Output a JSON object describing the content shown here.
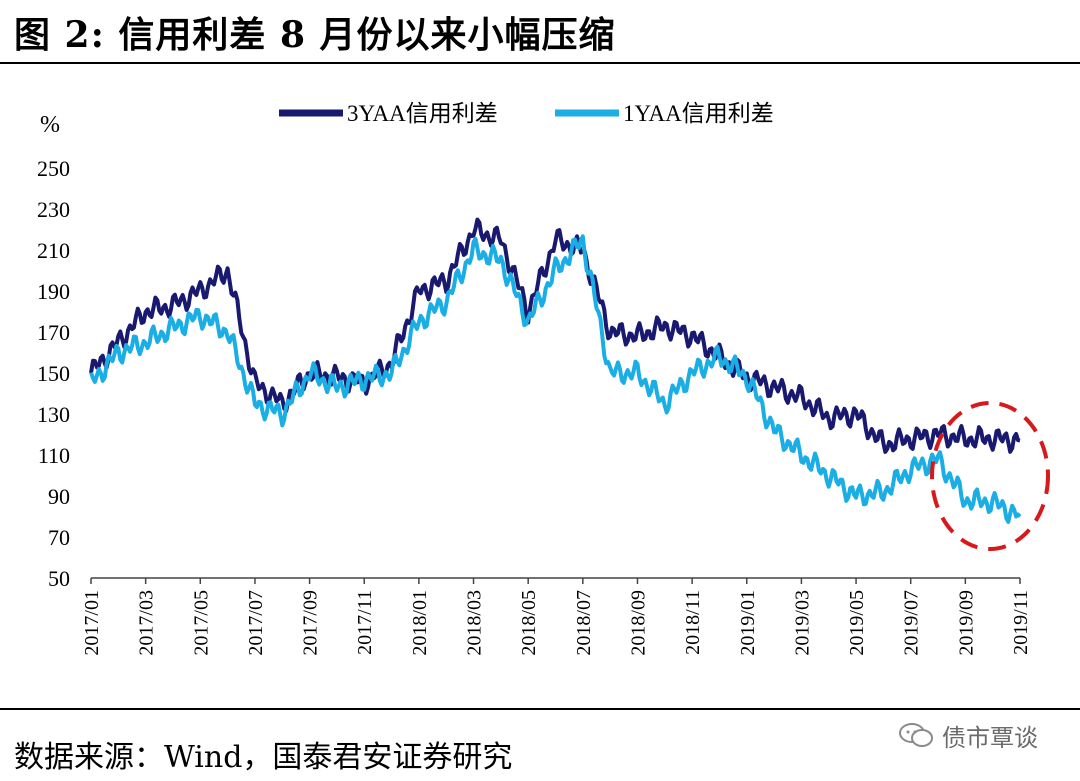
{
  "title": "图 2: 信用利差 8 月份以来小幅压缩",
  "source": "数据来源：Wind，国泰君安证券研究",
  "watermark": "债市覃谈",
  "chart_data": {
    "type": "line",
    "ylabel": "%",
    "ylim": [
      50,
      250
    ],
    "yticks": [
      50,
      70,
      90,
      110,
      130,
      150,
      170,
      190,
      210,
      230,
      250
    ],
    "xticks": [
      "2017/01",
      "2017/03",
      "2017/05",
      "2017/07",
      "2017/09",
      "2017/11",
      "2018/01",
      "2018/03",
      "2018/05",
      "2018/07",
      "2018/09",
      "2018/11",
      "2019/01",
      "2019/03",
      "2019/05",
      "2019/07",
      "2019/09",
      "2019/11"
    ],
    "x": [
      "2017/01",
      "2017/02",
      "2017/03",
      "2017/04",
      "2017/05",
      "2017/06",
      "2017/07",
      "2017/08",
      "2017/09",
      "2017/10",
      "2017/11",
      "2017/12",
      "2018/01",
      "2018/02",
      "2018/03",
      "2018/04",
      "2018/05",
      "2018/06",
      "2018/07",
      "2018/08",
      "2018/09",
      "2018/10",
      "2018/11",
      "2018/12",
      "2019/01",
      "2019/02",
      "2019/03",
      "2019/04",
      "2019/05",
      "2019/06",
      "2019/07",
      "2019/08",
      "2019/09",
      "2019/10",
      "2019/11"
    ],
    "legend_position": "top",
    "grid": false,
    "annotation": "red dashed ellipse highlighting 2019/08–2019/11",
    "series": [
      {
        "name": "3YAA信用利差",
        "color": "#191970",
        "values": [
          150,
          165,
          180,
          183,
          190,
          200,
          145,
          135,
          150,
          148,
          145,
          155,
          190,
          195,
          220,
          215,
          180,
          215,
          210,
          170,
          168,
          173,
          168,
          158,
          148,
          143,
          138,
          128,
          130,
          115,
          118,
          120,
          118,
          118,
          117
        ]
      },
      {
        "name": "1YAA信用利差",
        "color": "#1aaee5",
        "values": [
          145,
          160,
          165,
          172,
          178,
          170,
          135,
          130,
          150,
          143,
          147,
          150,
          175,
          185,
          210,
          205,
          175,
          200,
          215,
          150,
          150,
          135,
          150,
          158,
          148,
          122,
          110,
          100,
          90,
          92,
          103,
          108,
          88,
          87,
          80
        ]
      }
    ]
  }
}
